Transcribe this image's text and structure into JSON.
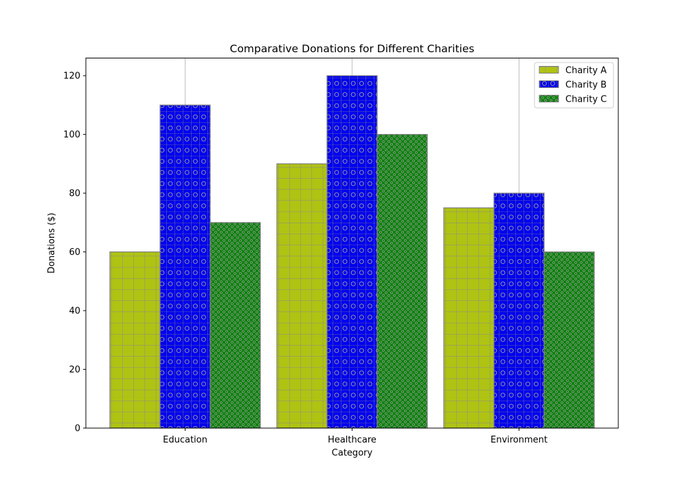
{
  "chart_data": {
    "type": "bar",
    "title": "Comparative Donations for Different Charities",
    "xlabel": "Category",
    "ylabel": "Donations ($)",
    "categories": [
      "Education",
      "Healthcare",
      "Environment"
    ],
    "series": [
      {
        "name": "Charity A",
        "values": [
          60,
          90,
          75
        ],
        "color": "#afc313",
        "hatch": "grid"
      },
      {
        "name": "Charity B",
        "values": [
          110,
          120,
          80
        ],
        "color": "#0000ee",
        "hatch": "grid-circles"
      },
      {
        "name": "Charity C",
        "values": [
          70,
          100,
          60
        ],
        "color": "#0b820b",
        "hatch": "dots"
      }
    ],
    "ylim": [
      0,
      126
    ],
    "yticks": [
      0,
      20,
      40,
      60,
      80,
      100,
      120
    ],
    "grid": "x-axis vertical lines",
    "legend_position": "top-right",
    "edge_color": "#808080"
  }
}
